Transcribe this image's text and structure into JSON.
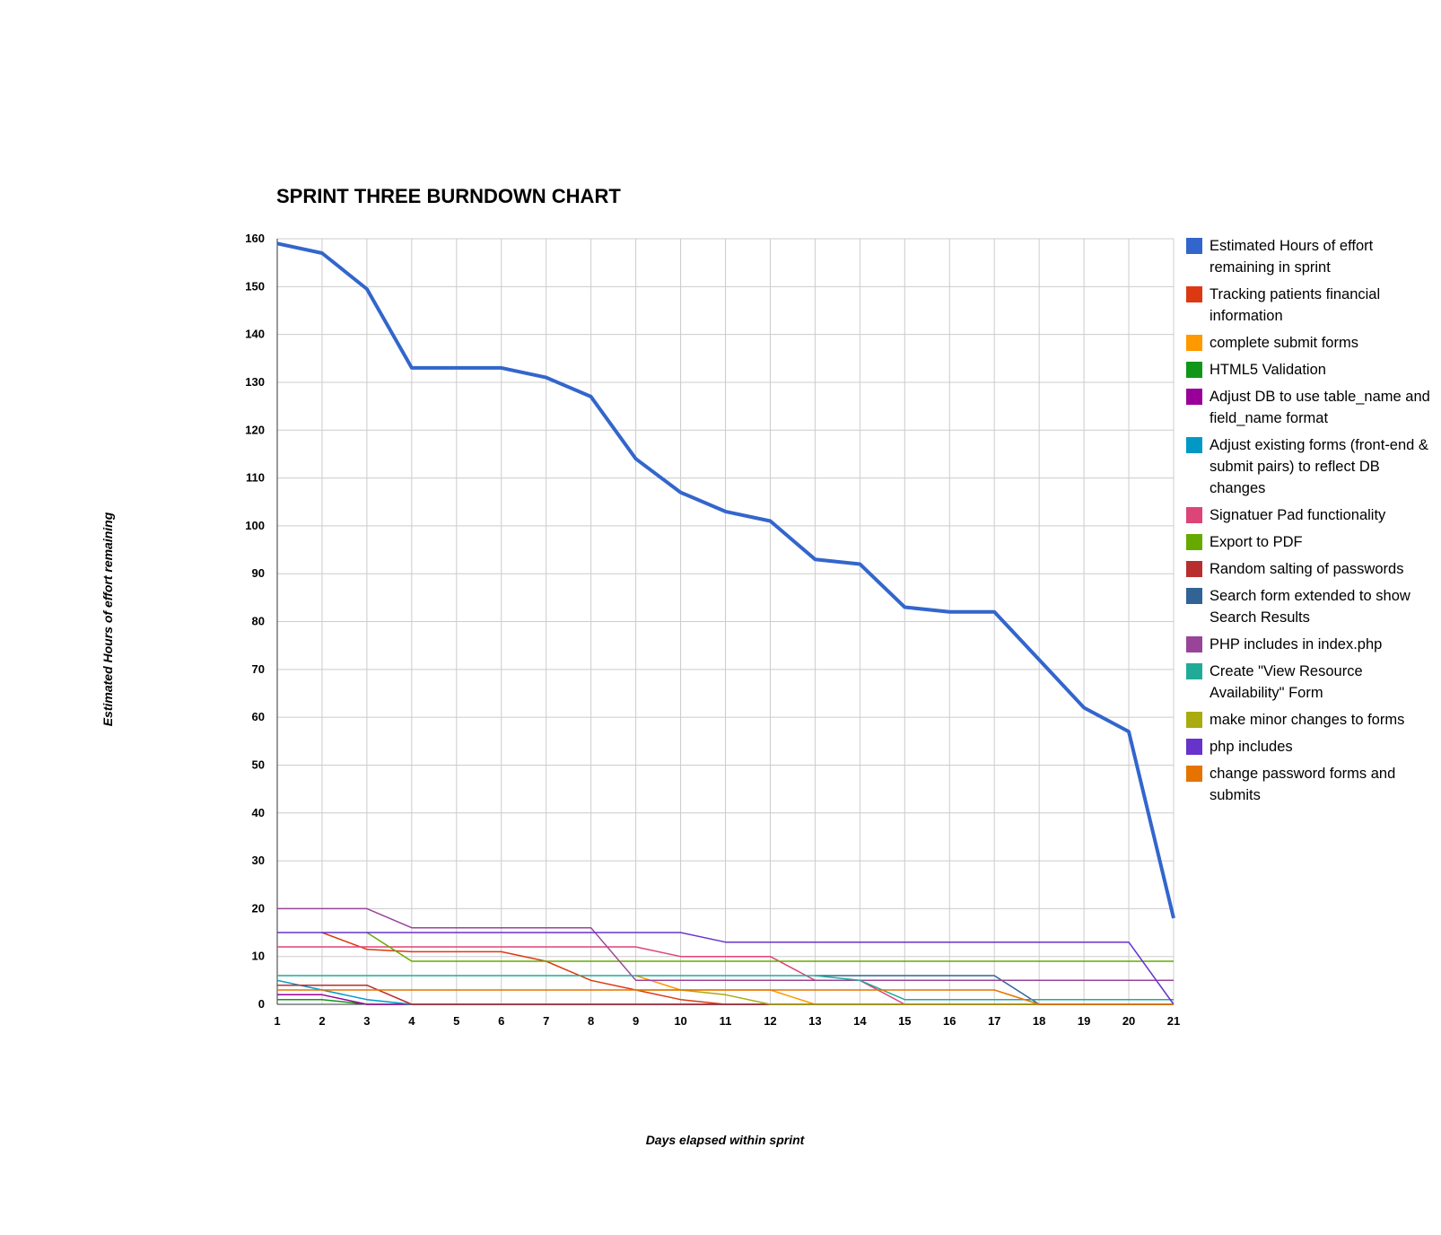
{
  "chart_data": {
    "type": "line",
    "title": "SPRINT THREE BURNDOWN CHART",
    "xlabel": "Days elapsed within sprint",
    "ylabel": "Estimated Hours of effort remaining",
    "x": [
      1,
      2,
      3,
      4,
      5,
      6,
      7,
      8,
      9,
      10,
      11,
      12,
      13,
      14,
      15,
      16,
      17,
      18,
      19,
      20,
      21
    ],
    "ylim": [
      0,
      160
    ],
    "yticks": [
      0,
      10,
      20,
      30,
      40,
      50,
      60,
      70,
      80,
      90,
      100,
      110,
      120,
      130,
      140,
      150,
      160
    ],
    "grid": true,
    "legend_position": "right",
    "series": [
      {
        "name": "Estimated Hours of effort remaining in sprint",
        "color": "#3366cc",
        "width": 4,
        "values": [
          159,
          157,
          149.5,
          133,
          133,
          133,
          131,
          127,
          114,
          107,
          103,
          101,
          93,
          92,
          83,
          82,
          82,
          72,
          62,
          57,
          18
        ]
      },
      {
        "name": "Tracking patients financial information",
        "color": "#dc3912",
        "width": 1.5,
        "values": [
          null,
          15,
          11.5,
          11,
          11,
          11,
          9,
          5,
          3,
          1,
          0,
          0,
          0,
          0,
          0,
          0,
          0,
          0,
          0,
          0,
          0
        ]
      },
      {
        "name": "complete submit forms",
        "color": "#ff9900",
        "width": 1.5,
        "values": [
          null,
          null,
          null,
          null,
          null,
          null,
          null,
          null,
          6,
          3,
          3,
          3,
          0,
          0,
          0,
          0,
          0,
          0,
          0,
          0,
          0
        ]
      },
      {
        "name": "HTML5 Validation",
        "color": "#109618",
        "width": 1.5,
        "values": [
          1,
          1,
          0,
          0,
          0,
          0,
          0,
          0,
          0,
          0,
          0,
          0,
          0,
          0,
          0,
          0,
          0,
          0,
          0,
          0,
          0
        ]
      },
      {
        "name": "Adjust DB to use table_name and field_name format",
        "color": "#990099",
        "width": 1.5,
        "values": [
          2,
          2,
          0,
          0,
          0,
          0,
          0,
          0,
          0,
          0,
          0,
          0,
          0,
          0,
          0,
          0,
          0,
          0,
          0,
          0,
          0
        ]
      },
      {
        "name": "Adjust existing forms (front-end & submit pairs) to reflect DB changes",
        "color": "#0099c6",
        "width": 1.5,
        "values": [
          5,
          3,
          1,
          0,
          0,
          0,
          0,
          0,
          0,
          0,
          0,
          0,
          0,
          0,
          0,
          0,
          0,
          0,
          0,
          0,
          0
        ]
      },
      {
        "name": "Signatuer Pad functionality",
        "color": "#dd4477",
        "width": 1.5,
        "values": [
          12,
          12,
          12,
          12,
          12,
          12,
          12,
          12,
          12,
          10,
          10,
          10,
          5,
          5,
          0,
          0,
          0,
          0,
          0,
          0,
          0
        ]
      },
      {
        "name": "Export to PDF",
        "color": "#66aa00",
        "width": 1.5,
        "values": [
          null,
          null,
          15,
          9,
          9,
          9,
          9,
          9,
          9,
          9,
          9,
          9,
          9,
          9,
          9,
          9,
          9,
          9,
          9,
          9,
          9
        ]
      },
      {
        "name": "Random salting of passwords",
        "color": "#b82e2e",
        "width": 1.5,
        "values": [
          4,
          4,
          4,
          0,
          0,
          0,
          0,
          0,
          0,
          0,
          0,
          0,
          0,
          0,
          0,
          0,
          0,
          0,
          0,
          0,
          0
        ]
      },
      {
        "name": "Search form extended to show Search Results",
        "color": "#316395",
        "width": 1.5,
        "values": [
          null,
          null,
          null,
          null,
          null,
          null,
          null,
          null,
          null,
          null,
          null,
          null,
          6,
          6,
          6,
          6,
          6,
          0,
          0,
          0,
          0
        ]
      },
      {
        "name": "PHP includes in index.php",
        "color": "#994499",
        "width": 1.5,
        "values": [
          20,
          20,
          20,
          16,
          16,
          16,
          16,
          16,
          5,
          5,
          5,
          5,
          5,
          5,
          5,
          5,
          5,
          5,
          5,
          5,
          5
        ]
      },
      {
        "name": "Create \"View Resource Availability\" Form",
        "color": "#22aa99",
        "width": 1.5,
        "values": [
          6,
          6,
          6,
          6,
          6,
          6,
          6,
          6,
          6,
          6,
          6,
          6,
          6,
          5,
          1,
          1,
          1,
          1,
          1,
          1,
          1
        ]
      },
      {
        "name": "make minor changes to forms",
        "color": "#aaaa11",
        "width": 1.5,
        "values": [
          null,
          null,
          null,
          null,
          null,
          null,
          null,
          null,
          3,
          3,
          2,
          0,
          0,
          0,
          0,
          0,
          0,
          0,
          0,
          0,
          0
        ]
      },
      {
        "name": "php includes",
        "color": "#6633cc",
        "width": 1.5,
        "values": [
          15,
          15,
          15,
          15,
          15,
          15,
          15,
          15,
          15,
          15,
          13,
          13,
          13,
          13,
          13,
          13,
          13,
          13,
          13,
          13,
          0
        ]
      },
      {
        "name": "change password forms and submits",
        "color": "#e67300",
        "width": 1.5,
        "values": [
          3,
          3,
          3,
          3,
          3,
          3,
          3,
          3,
          3,
          3,
          3,
          3,
          3,
          3,
          3,
          3,
          3,
          0,
          0,
          0,
          0
        ]
      }
    ]
  }
}
